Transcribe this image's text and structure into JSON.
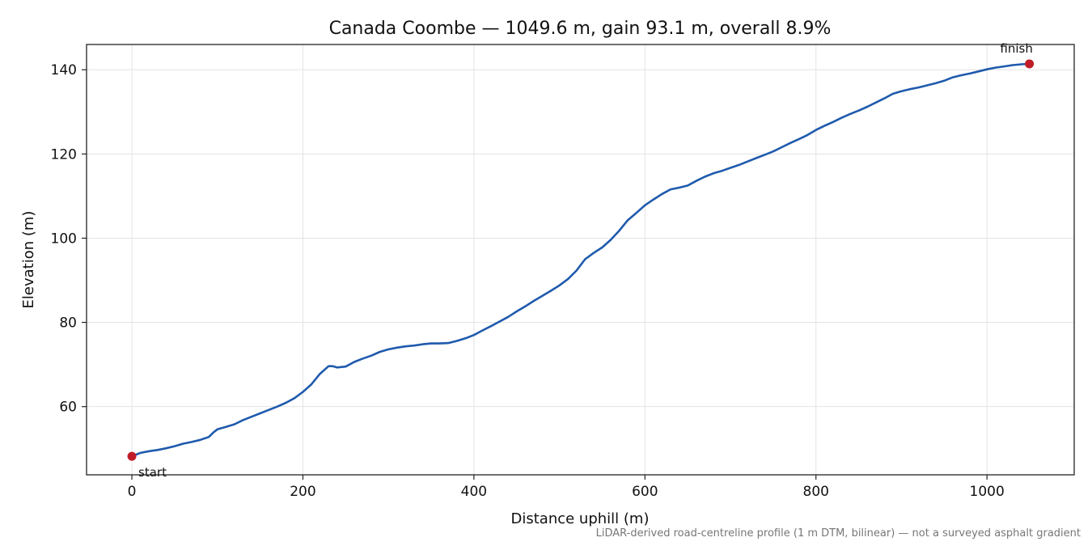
{
  "chart_data": {
    "type": "line",
    "title": "Canada Coombe — 1049.6 m, gain 93.1 m, overall 8.9%",
    "xlabel": "Distance uphill (m)",
    "ylabel": "Elevation (m)",
    "xlim": [
      -53,
      1102
    ],
    "ylim": [
      43.8,
      146.0
    ],
    "xticks": [
      0,
      200,
      400,
      600,
      800,
      1000
    ],
    "yticks": [
      60,
      80,
      100,
      120,
      140
    ],
    "grid": true,
    "line_color": "#1f5aad",
    "marker_color": "#c01c28",
    "series": [
      {
        "x": [
          0,
          5,
          10,
          20,
          30,
          40,
          50,
          60,
          70,
          80,
          90,
          95,
          100,
          110,
          120,
          130,
          140,
          150,
          160,
          170,
          180,
          190,
          200,
          210,
          220,
          230,
          235,
          240,
          250,
          260,
          270,
          280,
          290,
          300,
          310,
          320,
          330,
          340,
          350,
          360,
          370,
          380,
          390,
          400,
          410,
          420,
          430,
          440,
          450,
          460,
          470,
          480,
          490,
          500,
          510,
          520,
          530,
          540,
          550,
          560,
          570,
          580,
          590,
          600,
          610,
          620,
          630,
          640,
          650,
          660,
          670,
          680,
          690,
          700,
          710,
          720,
          730,
          740,
          750,
          760,
          770,
          780,
          790,
          800,
          810,
          820,
          830,
          840,
          850,
          860,
          870,
          880,
          890,
          900,
          910,
          920,
          930,
          940,
          950,
          960,
          970,
          980,
          990,
          1000,
          1010,
          1020,
          1030,
          1040,
          1049.6
        ],
        "y": [
          48.2,
          48.6,
          49.0,
          49.4,
          49.7,
          50.1,
          50.6,
          51.2,
          51.6,
          52.1,
          52.8,
          53.8,
          54.6,
          55.2,
          55.8,
          56.8,
          57.6,
          58.4,
          59.2,
          60.0,
          60.9,
          62.0,
          63.5,
          65.3,
          67.8,
          69.6,
          69.6,
          69.3,
          69.5,
          70.6,
          71.4,
          72.1,
          73.0,
          73.6,
          74.0,
          74.3,
          74.5,
          74.8,
          75.0,
          75.0,
          75.1,
          75.6,
          76.2,
          77.0,
          78.1,
          79.1,
          80.2,
          81.3,
          82.6,
          83.8,
          85.1,
          86.3,
          87.5,
          88.8,
          90.3,
          92.3,
          95.0,
          96.5,
          97.8,
          99.6,
          101.8,
          104.3,
          106.0,
          107.8,
          109.2,
          110.5,
          111.6,
          112.0,
          112.5,
          113.6,
          114.6,
          115.4,
          116.0,
          116.7,
          117.4,
          118.2,
          119.0,
          119.8,
          120.6,
          121.6,
          122.6,
          123.5,
          124.5,
          125.7,
          126.7,
          127.6,
          128.6,
          129.5,
          130.3,
          131.2,
          132.2,
          133.2,
          134.3,
          134.9,
          135.4,
          135.8,
          136.3,
          136.8,
          137.4,
          138.2,
          138.7,
          139.1,
          139.6,
          140.1,
          140.5,
          140.8,
          141.1,
          141.3,
          141.4
        ]
      }
    ],
    "annotations": [
      {
        "text": "start",
        "x": 0,
        "y": 48.2
      },
      {
        "text": "finish",
        "x": 1049.6,
        "y": 141.4
      }
    ]
  },
  "footnote": "LiDAR-derived road-centreline profile (1 m DTM, bilinear) — not a surveyed asphalt gradient"
}
